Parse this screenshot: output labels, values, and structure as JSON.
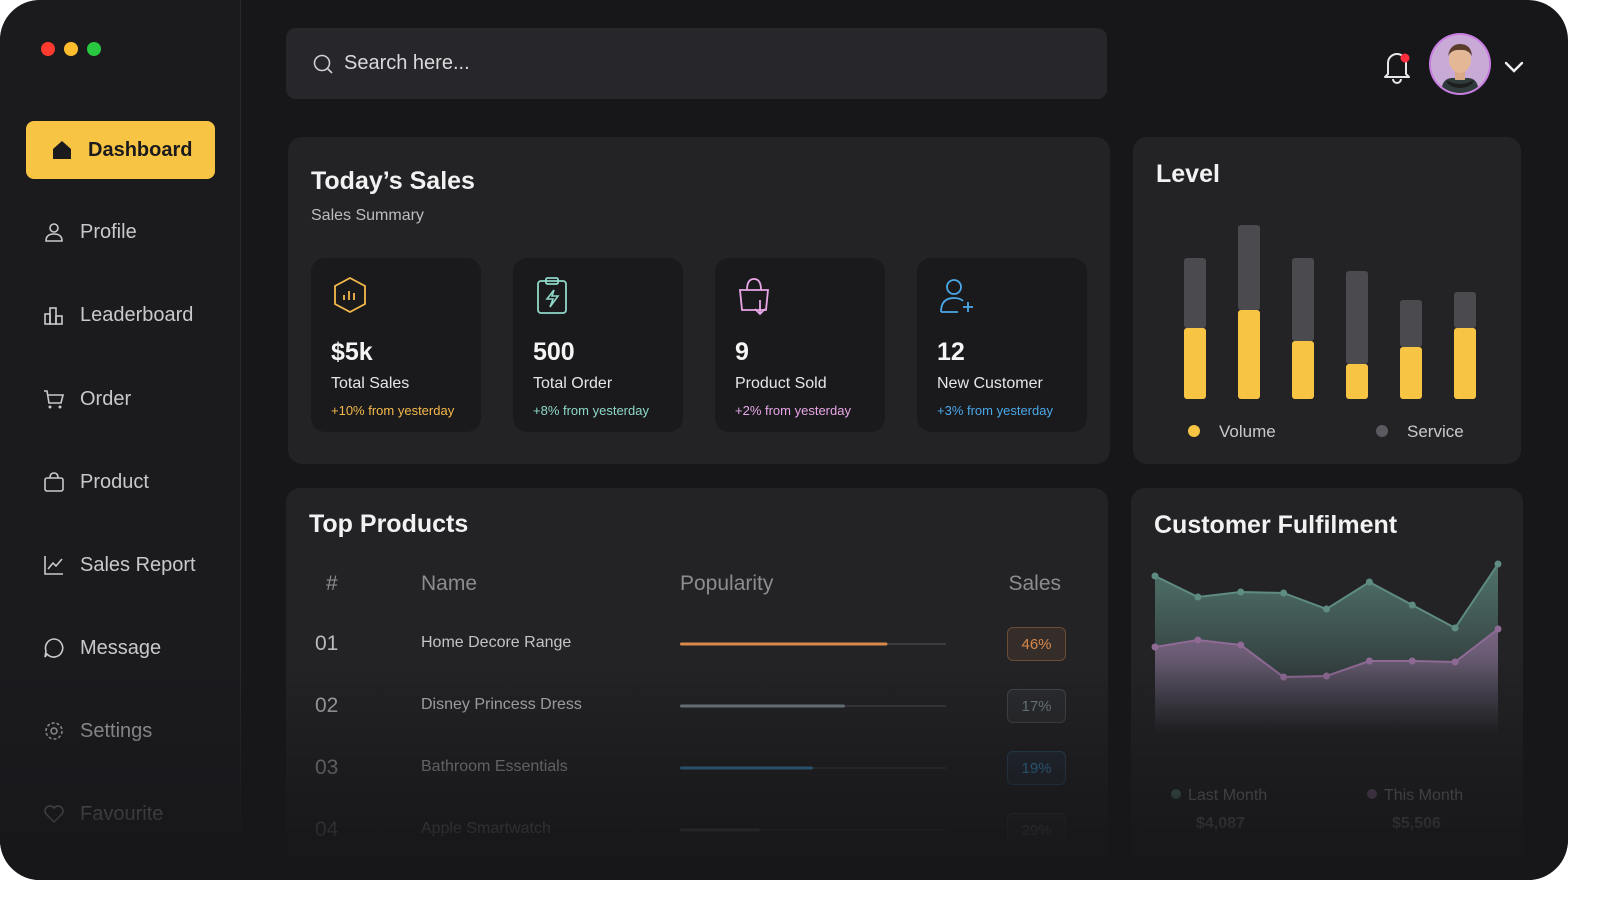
{
  "sidebar": {
    "nav": [
      "Dashboard",
      "Profile",
      "Leaderboard",
      "Order",
      "Product",
      "Sales Report",
      "Message",
      "Settings",
      "Favourite"
    ]
  },
  "search": {
    "placeholder": "Search here..."
  },
  "todays_sales": {
    "title": "Today’s Sales",
    "subtitle": "Sales Summary",
    "cards": [
      {
        "value": "$5k",
        "label": "Total Sales",
        "change": "+10% from yesterday",
        "color": "#f5b94a"
      },
      {
        "value": "500",
        "label": "Total Order",
        "change": "+8% from yesterday",
        "color": "#8fd8c8"
      },
      {
        "value": "9",
        "label": "Product Sold",
        "change": "+2% from yesterday",
        "color": "#e8a6e6"
      },
      {
        "value": "12",
        "label": "New Customer",
        "change": "+3% from yesterday",
        "color": "#4aa8e8"
      }
    ]
  },
  "top_products": {
    "title": "Top Products",
    "columns": [
      "#",
      "Name",
      "Popularity",
      "Sales"
    ],
    "rows": [
      {
        "rank": "01",
        "name": "Home Decore Range",
        "popularity": 78,
        "sales": "46%",
        "color": "#d9894a"
      },
      {
        "rank": "02",
        "name": "Disney Princess Dress",
        "popularity": 62,
        "sales": "17%",
        "color": "#7d8a8e"
      },
      {
        "rank": "03",
        "name": "Bathroom Essentials",
        "popularity": 50,
        "sales": "19%",
        "color": "#3f9fe0"
      },
      {
        "rank": "04",
        "name": "Apple Smartwatch",
        "popularity": 30,
        "sales": "29%",
        "color": "#8a8a90"
      }
    ]
  },
  "chart_data": [
    {
      "type": "bar",
      "title": "Level",
      "stacked": true,
      "categories": [
        null,
        null,
        null,
        null,
        null,
        null
      ],
      "series": [
        {
          "name": "Volume",
          "color": "#f8c443",
          "values": [
            71,
            89,
            58,
            35,
            52,
            71
          ]
        },
        {
          "name": "Service",
          "color": "#4a4a4f",
          "values": [
            70,
            85,
            83,
            93,
            47,
            36
          ]
        }
      ]
    },
    {
      "type": "area",
      "title": "Customer Fulfilment",
      "categories": [
        null,
        null,
        null,
        null,
        null,
        null,
        null,
        null,
        null
      ],
      "series": [
        {
          "name": "Last Month",
          "color": "#5f8c82",
          "values": [
            124,
            103,
            108,
            107,
            91,
            118,
            95,
            72,
            136
          ],
          "total": "$4,087"
        },
        {
          "name": "This Month",
          "color": "#8f6a95",
          "values": [
            53,
            60,
            55,
            23,
            24,
            39,
            39,
            38,
            71
          ],
          "total": "$5,506"
        }
      ]
    }
  ]
}
